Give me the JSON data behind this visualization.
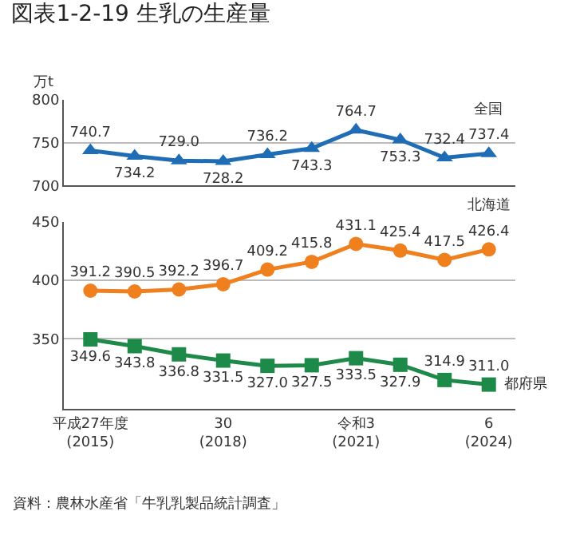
{
  "chart_data": [
    {
      "type": "line",
      "title": "図表1-2-19 生乳の生産量",
      "ylabel": "万t",
      "series": [
        {
          "name": "全国",
          "color": "#1f6db5",
          "marker": "triangle",
          "values": [
            740.7,
            734.2,
            729.0,
            728.2,
            736.2,
            743.3,
            764.7,
            753.3,
            732.4,
            737.4
          ],
          "value_labels": [
            "740.7",
            "734.2",
            "729.0",
            "728.2",
            "736.2",
            "743.3",
            "764.7",
            "753.3",
            "732.4",
            "737.4"
          ]
        }
      ],
      "ylim": [
        700,
        800
      ],
      "yticks": [
        700,
        750,
        800
      ],
      "grid": "y",
      "tick_labels": "y"
    },
    {
      "type": "line",
      "categories": [
        "平成27年度\n(2015)",
        null,
        null,
        "30\n(2018)",
        null,
        null,
        "令和3\n(2021)",
        null,
        null,
        "6\n(2024)"
      ],
      "series": [
        {
          "name": "北海道",
          "color": "#f07f1e",
          "marker": "circle",
          "values": [
            391.2,
            390.5,
            392.2,
            396.7,
            409.2,
            415.8,
            431.1,
            425.4,
            417.5,
            426.4
          ],
          "value_labels": [
            "391.2",
            "390.5",
            "392.2",
            "396.7",
            "409.2",
            "415.8",
            "431.1",
            "425.4",
            "417.5",
            "426.4"
          ]
        },
        {
          "name": "都府県",
          "color": "#1e8a4a",
          "marker": "square",
          "values": [
            349.6,
            343.8,
            336.8,
            331.5,
            327.0,
            327.5,
            333.5,
            327.9,
            314.9,
            311.0
          ],
          "value_labels": [
            "349.6",
            "343.8",
            "336.8",
            "331.5",
            "327.0",
            "327.5",
            "333.5",
            "327.9",
            "314.9",
            "311.0"
          ]
        }
      ],
      "ylim": [
        290,
        450
      ],
      "yticks": [
        350,
        400,
        450
      ],
      "grid": "y",
      "annotations": [
        "資料：農林水産省「牛乳乳製品統計調査」"
      ]
    }
  ]
}
